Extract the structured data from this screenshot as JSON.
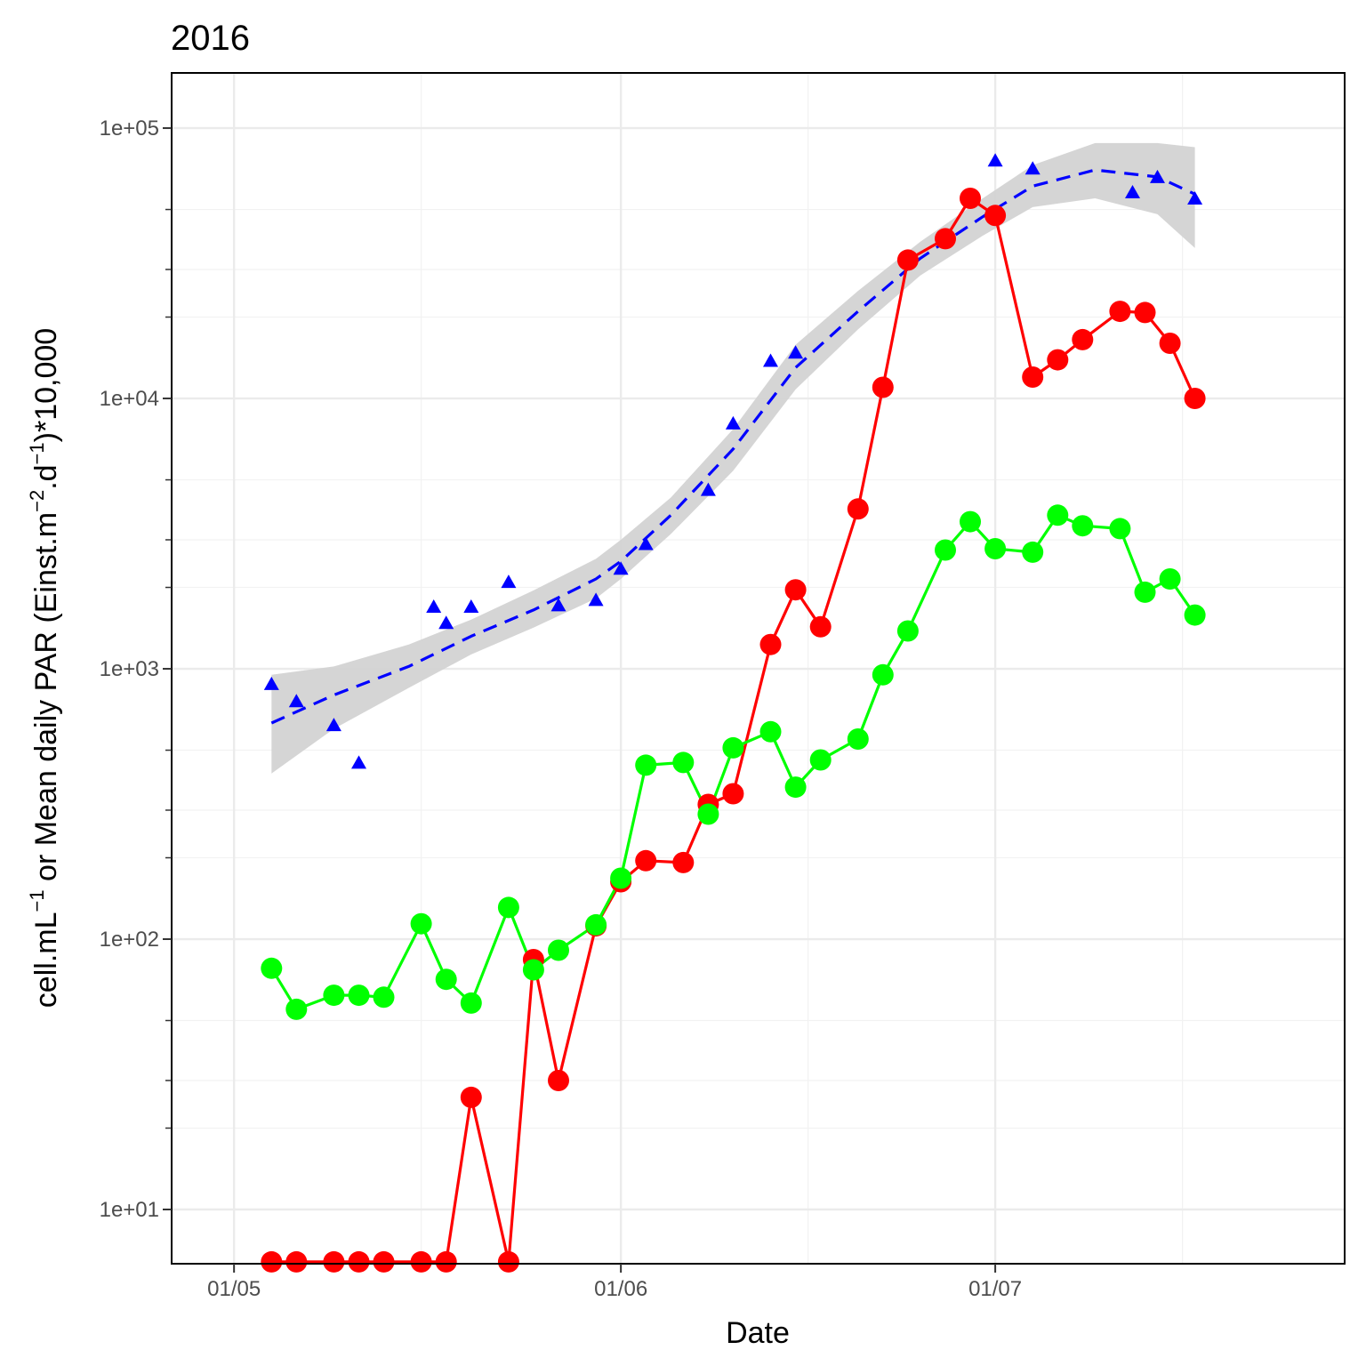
{
  "chart_data": {
    "type": "line",
    "title": "2016",
    "xlabel": "Date",
    "ylabel": {
      "p1": "cell.mL",
      "s1": "−1",
      "p2": " or Mean daily PAR (Einst.m",
      "s2": "−2",
      "p3": ".d",
      "s3": "−1",
      "p4": ")*10,000"
    },
    "x_scale": "date",
    "y_scale": "log10",
    "xlim": [
      "2016-04-26",
      "2016-07-29"
    ],
    "ylim": [
      6.3,
      160000
    ],
    "x_ticks": [
      {
        "value": "2016-05-01",
        "label": "01/05"
      },
      {
        "value": "2016-06-01",
        "label": "01/06"
      },
      {
        "value": "2016-07-01",
        "label": "01/07"
      }
    ],
    "x_minor_ticks": [
      "2016-05-16",
      "2016-06-16",
      "2016-07-16"
    ],
    "y_ticks": [
      {
        "value": 10,
        "label": "1e+01"
      },
      {
        "value": 100,
        "label": "1e+02"
      },
      {
        "value": 1000,
        "label": "1e+03"
      },
      {
        "value": 10000,
        "label": "1e+04"
      },
      {
        "value": 100000,
        "label": "1e+05"
      }
    ],
    "y_minor_ticks": [
      20,
      30,
      50,
      200,
      300,
      500,
      2000,
      3000,
      5000,
      20000,
      30000,
      50000
    ],
    "grid": true,
    "series": [
      {
        "marker": "triangle",
        "line": "none",
        "color": "#0000FF",
        "points": [
          [
            "2016-05-04",
            880
          ],
          [
            "2016-05-06",
            760
          ],
          [
            "2016-05-09",
            620
          ],
          [
            "2016-05-11",
            450
          ],
          [
            "2016-05-17",
            1700
          ],
          [
            "2016-05-18",
            1480
          ],
          [
            "2016-05-20",
            1700
          ],
          [
            "2016-05-23",
            2100
          ],
          [
            "2016-05-27",
            1720
          ],
          [
            "2016-05-30",
            1800
          ],
          [
            "2016-06-01",
            2350
          ],
          [
            "2016-06-03",
            2900
          ],
          [
            "2016-06-08",
            4600
          ],
          [
            "2016-06-10",
            8100
          ],
          [
            "2016-06-13",
            13800
          ],
          [
            "2016-06-15",
            14800
          ],
          [
            "2016-07-01",
            76000
          ],
          [
            "2016-07-04",
            71000
          ],
          [
            "2016-07-12",
            58000
          ],
          [
            "2016-07-14",
            66000
          ],
          [
            "2016-07-17",
            55000
          ]
        ]
      },
      {
        "marker": "none",
        "line": "dashed",
        "color": "#0000FF",
        "ci_color": "#D3D3D3",
        "points": [
          [
            "2016-05-04",
            630,
            410,
            950
          ],
          [
            "2016-05-09",
            800,
            600,
            1020
          ],
          [
            "2016-05-15",
            1020,
            850,
            1230
          ],
          [
            "2016-05-20",
            1320,
            1130,
            1520
          ],
          [
            "2016-05-25",
            1650,
            1420,
            1950
          ],
          [
            "2016-05-30",
            2150,
            1820,
            2550
          ],
          [
            "2016-06-01",
            2500,
            2150,
            3000
          ],
          [
            "2016-06-05",
            3700,
            3150,
            4300
          ],
          [
            "2016-06-10",
            6500,
            5400,
            7700
          ],
          [
            "2016-06-15",
            13000,
            10800,
            15800
          ],
          [
            "2016-06-20",
            21000,
            18000,
            25000
          ],
          [
            "2016-06-25",
            33000,
            28500,
            38000
          ],
          [
            "2016-06-30",
            47000,
            40000,
            55000
          ],
          [
            "2016-07-04",
            61000,
            51000,
            73000
          ],
          [
            "2016-07-09",
            70000,
            55000,
            88000
          ],
          [
            "2016-07-14",
            66000,
            48000,
            88000
          ],
          [
            "2016-07-17",
            57000,
            36000,
            85000
          ]
        ]
      },
      {
        "marker": "circle",
        "line": "solid",
        "color": "#FF0000",
        "points": [
          [
            "2016-05-04",
            6.4
          ],
          [
            "2016-05-06",
            6.4
          ],
          [
            "2016-05-09",
            6.4
          ],
          [
            "2016-05-11",
            6.4
          ],
          [
            "2016-05-13",
            6.4
          ],
          [
            "2016-05-16",
            6.4
          ],
          [
            "2016-05-18",
            6.4
          ],
          [
            "2016-05-20",
            26
          ],
          [
            "2016-05-23",
            6.4
          ],
          [
            "2016-05-25",
            84
          ],
          [
            "2016-05-27",
            30
          ],
          [
            "2016-05-30",
            112
          ],
          [
            "2016-06-01",
            163
          ],
          [
            "2016-06-03",
            195
          ],
          [
            "2016-06-06",
            192
          ],
          [
            "2016-06-08",
            315
          ],
          [
            "2016-06-10",
            345
          ],
          [
            "2016-06-13",
            1230
          ],
          [
            "2016-06-15",
            1960
          ],
          [
            "2016-06-17",
            1430
          ],
          [
            "2016-06-20",
            3900
          ],
          [
            "2016-06-22",
            11000
          ],
          [
            "2016-06-24",
            32500
          ],
          [
            "2016-06-27",
            39000
          ],
          [
            "2016-06-29",
            55000
          ],
          [
            "2016-07-01",
            47500
          ],
          [
            "2016-07-04",
            12000
          ],
          [
            "2016-07-06",
            13900
          ],
          [
            "2016-07-08",
            16500
          ],
          [
            "2016-07-11",
            21000
          ],
          [
            "2016-07-13",
            20800
          ],
          [
            "2016-07-15",
            16000
          ],
          [
            "2016-07-17",
            10000
          ]
        ]
      },
      {
        "marker": "circle",
        "line": "solid",
        "color": "#00FF00",
        "points": [
          [
            "2016-05-04",
            78
          ],
          [
            "2016-05-06",
            55
          ],
          [
            "2016-05-09",
            62
          ],
          [
            "2016-05-11",
            62
          ],
          [
            "2016-05-13",
            61
          ],
          [
            "2016-05-16",
            114
          ],
          [
            "2016-05-18",
            71
          ],
          [
            "2016-05-20",
            58
          ],
          [
            "2016-05-23",
            131
          ],
          [
            "2016-05-25",
            77
          ],
          [
            "2016-05-27",
            91
          ],
          [
            "2016-05-30",
            113
          ],
          [
            "2016-06-01",
            168
          ],
          [
            "2016-06-03",
            440
          ],
          [
            "2016-06-06",
            450
          ],
          [
            "2016-06-08",
            290
          ],
          [
            "2016-06-10",
            510
          ],
          [
            "2016-06-13",
            585
          ],
          [
            "2016-06-15",
            365
          ],
          [
            "2016-06-17",
            460
          ],
          [
            "2016-06-20",
            550
          ],
          [
            "2016-06-22",
            950
          ],
          [
            "2016-06-24",
            1380
          ],
          [
            "2016-06-27",
            2750
          ],
          [
            "2016-06-29",
            3500
          ],
          [
            "2016-07-01",
            2780
          ],
          [
            "2016-07-04",
            2700
          ],
          [
            "2016-07-06",
            3700
          ],
          [
            "2016-07-08",
            3380
          ],
          [
            "2016-07-11",
            3300
          ],
          [
            "2016-07-13",
            1920
          ],
          [
            "2016-07-15",
            2150
          ],
          [
            "2016-07-17",
            1580
          ]
        ]
      }
    ]
  }
}
